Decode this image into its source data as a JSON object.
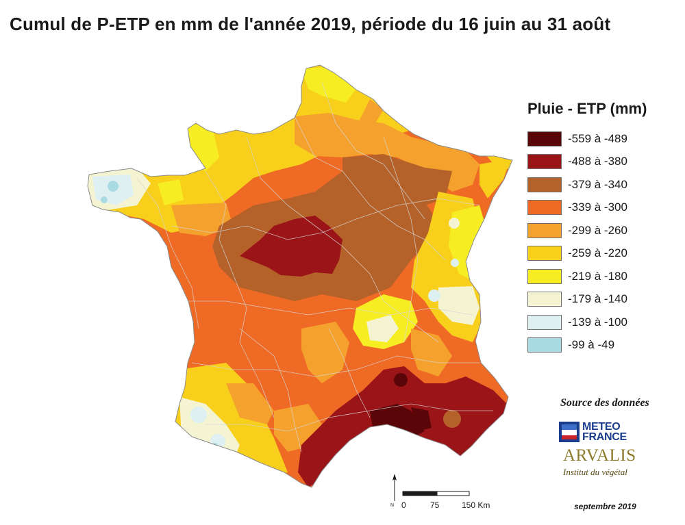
{
  "title": "Cumul de P-ETP en mm de l'année 2019, période du 16 juin au 31 août",
  "legend": {
    "title": "Pluie - ETP (mm)",
    "classes": [
      {
        "label": "-559 à -489",
        "color": "#5a0508"
      },
      {
        "label": "-488 à -380",
        "color": "#9b1418"
      },
      {
        "label": "-379 à -340",
        "color": "#b4622a"
      },
      {
        "label": "-339 à -300",
        "color": "#ef6a25"
      },
      {
        "label": "-299 à -260",
        "color": "#f5a12d"
      },
      {
        "label": "-259 à -220",
        "color": "#f8cf1a"
      },
      {
        "label": "-219 à -180",
        "color": "#f6ee22"
      },
      {
        "label": "-179 à -140",
        "color": "#f4f4d2"
      },
      {
        "label": "-139 à -100",
        "color": "#dff0f3"
      },
      {
        "label": "-99 à -49",
        "color": "#a9dce2"
      }
    ]
  },
  "source": {
    "label": "Source des données",
    "meteo_france": "METEO FRANCE",
    "arvalis": "ARVALIS",
    "arvalis_subtitle": "Institut du végétal"
  },
  "scale_bar": {
    "ticks": [
      "0",
      "75",
      "150 Km"
    ]
  },
  "north_arrow": {
    "label": "N",
    "icon": "north-arrow-icon"
  },
  "date": "septembre 2019"
}
